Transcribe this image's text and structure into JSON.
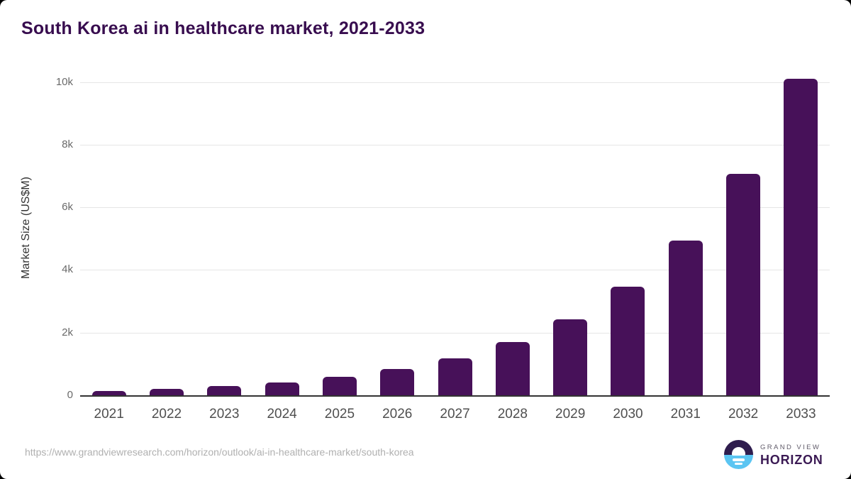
{
  "title": "South Korea ai in healthcare market, 2021-2033",
  "footer": {
    "source_url": "https://www.grandviewresearch.com/horizon/outlook/ai-in-healthcare-market/south-korea",
    "logo": {
      "top": "GRAND VIEW",
      "bottom": "HORIZON"
    }
  },
  "colors": {
    "title": "#380d4f",
    "bar": "#471159",
    "gridline": "#e6e6e6",
    "axis_line": "#333333",
    "y_tick_label": "#6a6a6a",
    "x_tick_label": "#4f4f4f",
    "y_axis_title": "#333333",
    "url_text": "#b0b0b0",
    "logo_dark_half": "#2f1d4e",
    "logo_blue_half": "#5bc5f2",
    "logo_top_text": "#5f5a68",
    "logo_bottom_text": "#3b1a54"
  },
  "chart_data": {
    "type": "bar",
    "title": "South Korea ai in healthcare market, 2021-2033",
    "xlabel": "",
    "ylabel": "Market Size (US$M)",
    "categories": [
      "2021",
      "2022",
      "2023",
      "2024",
      "2025",
      "2026",
      "2027",
      "2028",
      "2029",
      "2030",
      "2031",
      "2032",
      "2033"
    ],
    "values": [
      140,
      210,
      300,
      400,
      590,
      830,
      1190,
      1700,
      2430,
      3470,
      4940,
      7070,
      10100
    ],
    "yticks": [
      {
        "label": "0",
        "value": 0
      },
      {
        "label": "2k",
        "value": 2000
      },
      {
        "label": "4k",
        "value": 4000
      },
      {
        "label": "6k",
        "value": 6000
      },
      {
        "label": "8k",
        "value": 8000
      },
      {
        "label": "10k",
        "value": 10000
      }
    ],
    "ylim": [
      0,
      10500
    ],
    "grid": true,
    "legend": false,
    "units": "US$ million"
  }
}
